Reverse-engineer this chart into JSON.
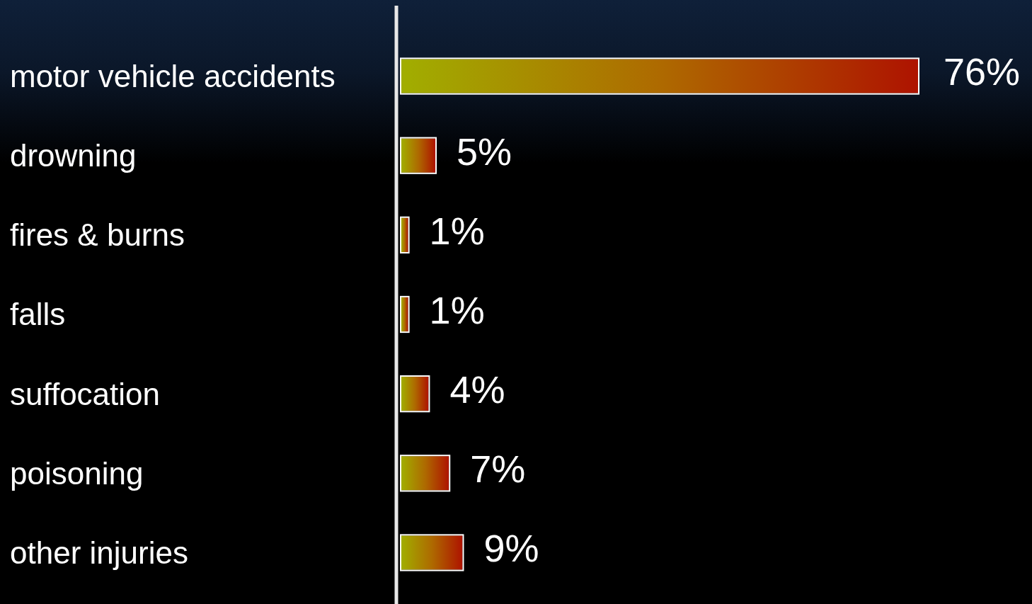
{
  "chart_data": {
    "type": "bar",
    "orientation": "horizontal",
    "categories": [
      "motor vehicle accidents",
      "drowning",
      "fires & burns",
      "falls",
      "suffocation",
      "poisoning",
      "other injuries"
    ],
    "values": [
      76,
      5,
      1,
      1,
      4,
      7,
      9
    ],
    "color": "#ae6a00",
    "data_labels": true,
    "value_labels": [
      "76%",
      "5%",
      "1%",
      "1%",
      "4%",
      "7%",
      "9%"
    ]
  }
}
